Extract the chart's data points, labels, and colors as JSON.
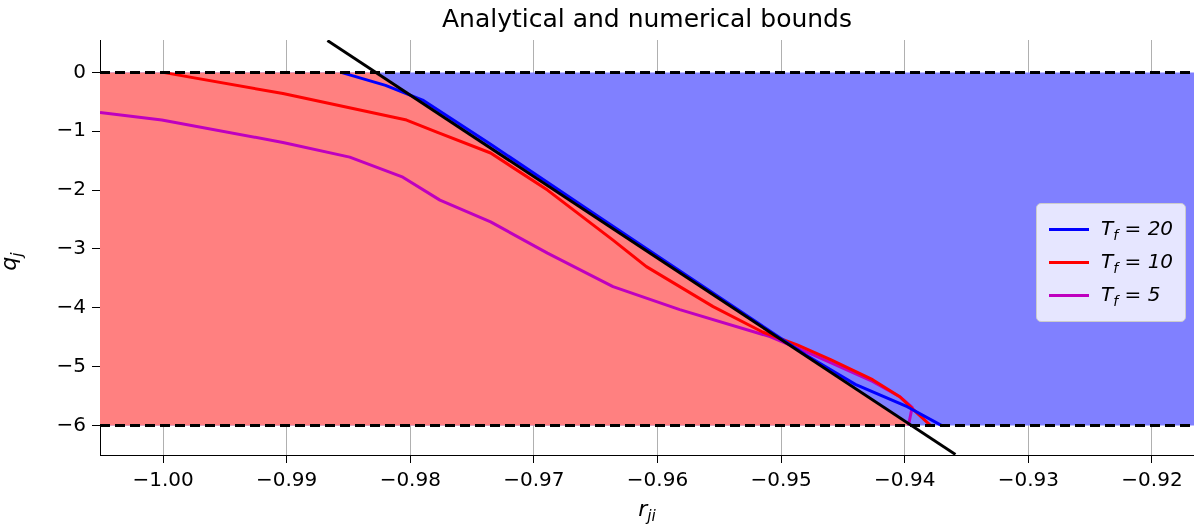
{
  "chart_data": {
    "type": "line",
    "title": "Analytical and numerical bounds",
    "xlabel": "r$_{ji}$",
    "ylabel": "q$_{j}$",
    "xlim": [
      -1.0051,
      -0.9166
    ],
    "ylim": [
      -6.5,
      0.55
    ],
    "xticks": [
      {
        "value": -1,
        "label": "−1.00"
      },
      {
        "value": -0.99,
        "label": "−0.99"
      },
      {
        "value": -0.98,
        "label": "−0.98"
      },
      {
        "value": -0.97,
        "label": "−0.97"
      },
      {
        "value": -0.96,
        "label": "−0.96"
      },
      {
        "value": -0.95,
        "label": "−0.95"
      },
      {
        "value": -0.94,
        "label": "−0.94"
      },
      {
        "value": -0.93,
        "label": "−0.93"
      },
      {
        "value": -0.92,
        "label": "−0.92"
      }
    ],
    "yticks": [
      {
        "value": -6,
        "label": "−6"
      },
      {
        "value": -5,
        "label": "−5"
      },
      {
        "value": -4,
        "label": "−4"
      },
      {
        "value": -3,
        "label": "−3"
      },
      {
        "value": -2,
        "label": "−2"
      },
      {
        "value": -1,
        "label": "−1"
      },
      0
    ],
    "grid": true,
    "legend": "right",
    "bands": [
      {
        "axis": "y",
        "from": -6,
        "to": 0,
        "color": "#8080ff"
      }
    ],
    "ref_lines": [
      {
        "axis": "y",
        "value": 0,
        "color": "#000000",
        "line_style": "dashed"
      },
      {
        "axis": "y",
        "value": -6,
        "color": "#000000",
        "line_style": "dashed"
      }
    ],
    "series": [
      {
        "type": "area",
        "color": "#ff8080",
        "x": [
          -1.0051,
          -1.0051,
          -0.9828,
          -0.9395
        ],
        "values": [
          -6,
          0,
          0,
          -6
        ]
      },
      {
        "color": "#000000",
        "x": [
          -0.9867,
          -0.9359
        ],
        "values": [
          0.54,
          -6.49
        ]
      },
      {
        "name": "T$_{f}$ = 20",
        "color": "#0000ff",
        "x": [
          -0.9856,
          -0.982,
          -0.979,
          -0.9735,
          -0.965,
          -0.955,
          -0.948,
          -0.944,
          -0.9398,
          -0.937
        ],
        "values": [
          0,
          -0.22,
          -0.47,
          -1.22,
          -2.42,
          -3.82,
          -4.8,
          -5.3,
          -5.68,
          -6
        ]
      },
      {
        "name": "T$_{f}$ = 10",
        "color": "#ff0000",
        "x": [
          -1,
          -0.9903,
          -0.9803,
          -0.9778,
          -0.9735,
          -0.9689,
          -0.9636,
          -0.9609,
          -0.9555,
          -0.9515,
          -0.9487,
          -0.946,
          -0.9426,
          -0.9404,
          -0.9393,
          -0.9379
        ],
        "values": [
          0,
          -0.36,
          -0.81,
          -1.02,
          -1.37,
          -2,
          -2.85,
          -3.3,
          -3.98,
          -4.41,
          -4.63,
          -4.88,
          -5.22,
          -5.51,
          -5.73,
          -6
        ]
      },
      {
        "name": "T$_{f}$ = 5",
        "color": "#bf00bf",
        "x": [
          -1.0051,
          -1.0001,
          -0.9903,
          -0.9849,
          -0.9806,
          -0.9776,
          -0.9735,
          -0.9689,
          -0.9636,
          -0.9582,
          -0.9509,
          -0.9474,
          -0.9426,
          -0.9404,
          -0.9394,
          -0.9397
        ],
        "values": [
          -0.68,
          -0.81,
          -1.19,
          -1.44,
          -1.78,
          -2.17,
          -2.54,
          -3.07,
          -3.64,
          -4.03,
          -4.49,
          -4.8,
          -5.25,
          -5.51,
          -5.69,
          -6
        ]
      }
    ]
  }
}
